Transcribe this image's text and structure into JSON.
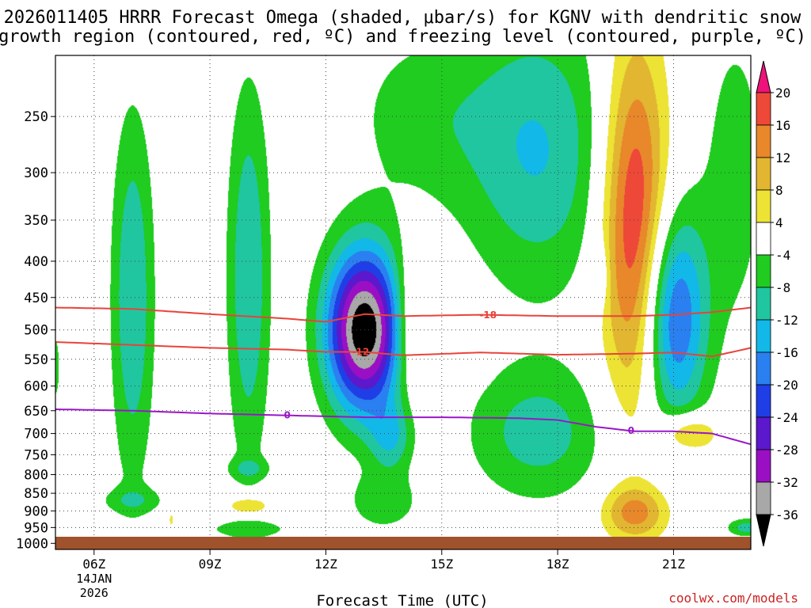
{
  "title_line1": "2026011405 HRRR Forecast Omega (shaded, μbar/s) for KGNV with dendritic snow",
  "title_line2": "growth region (contoured, red, ºC) and freezing level (contoured, purple, ºC)",
  "credit": "coolwx.com/models",
  "colors": {
    "dgz_contour": "#e8433a",
    "freezing_contour": "#9a16c8",
    "ground": "#a0522d",
    "credit": "#cc2222"
  },
  "chart_data": {
    "type": "heatmap",
    "xlabel": "Forecast Time (UTC)",
    "ylabel": "",
    "x_range_hours": [
      5,
      23
    ],
    "x_ticks": [
      {
        "hour": 6,
        "label": "06Z",
        "date1": "14JAN",
        "date2": "2026"
      },
      {
        "hour": 9,
        "label": "09Z"
      },
      {
        "hour": 12,
        "label": "12Z"
      },
      {
        "hour": 15,
        "label": "15Z"
      },
      {
        "hour": 18,
        "label": "18Z"
      },
      {
        "hour": 21,
        "label": "21Z"
      }
    ],
    "y_range_mb": [
      205,
      1020
    ],
    "y_ticks": [
      250,
      300,
      350,
      400,
      450,
      500,
      550,
      600,
      650,
      700,
      750,
      800,
      850,
      900,
      950,
      1000
    ],
    "grid": true,
    "colorbar": {
      "units": "μbar/s",
      "levels": [
        {
          "lo": -40,
          "hi": -36,
          "color": "#000000"
        },
        {
          "lo": -36,
          "hi": -32,
          "color": "#a8a8a8"
        },
        {
          "lo": -32,
          "hi": -28,
          "color": "#9b0fc4"
        },
        {
          "lo": -28,
          "hi": -24,
          "color": "#5c18cc"
        },
        {
          "lo": -24,
          "hi": -20,
          "color": "#1f3ee6"
        },
        {
          "lo": -20,
          "hi": -16,
          "color": "#2a80f0"
        },
        {
          "lo": -16,
          "hi": -12,
          "color": "#12b8e8"
        },
        {
          "lo": -12,
          "hi": -8,
          "color": "#20c6a0"
        },
        {
          "lo": -8,
          "hi": -4,
          "color": "#1fcc1f"
        },
        {
          "lo": -4,
          "hi": 4,
          "color": "#ffffff"
        },
        {
          "lo": 4,
          "hi": 8,
          "color": "#ece335"
        },
        {
          "lo": 8,
          "hi": 12,
          "color": "#e2b630"
        },
        {
          "lo": 12,
          "hi": 16,
          "color": "#e8882a"
        },
        {
          "lo": 16,
          "hi": 20,
          "color": "#ee4838"
        },
        {
          "lo": 20,
          "hi": 24,
          "color": "#ee127a"
        }
      ],
      "tick_labels": [
        "20",
        "16",
        "12",
        "8",
        "4",
        "-4",
        "-8",
        "-12",
        "-16",
        "-20",
        "-24",
        "-28",
        "-32",
        "-36"
      ]
    },
    "omega_features": [
      {
        "hour": 5.0,
        "p": 565,
        "dh": 0.14,
        "dp": 75,
        "peak": -6
      },
      {
        "hour": 7.0,
        "p": 450,
        "dh": 0.55,
        "dp": 240,
        "peak": -12
      },
      {
        "hour": 10.0,
        "p": 420,
        "dh": 0.55,
        "dp": 230,
        "peak": -12
      },
      {
        "hour": 7.0,
        "p": 870,
        "dh": 0.9,
        "dp": 38,
        "peak": -6
      },
      {
        "hour": 8.0,
        "p": 925,
        "dh": 0.12,
        "dp": 45,
        "peak": 5
      },
      {
        "hour": 10.0,
        "p": 785,
        "dh": 0.55,
        "dp": 28,
        "peak": -6
      },
      {
        "hour": 10.0,
        "p": 885,
        "dh": 0.55,
        "dp": 28,
        "peak": 10
      },
      {
        "hour": 10.0,
        "p": 955,
        "dh": 1.2,
        "dp": 30,
        "peak": -6
      },
      {
        "hour": 13.0,
        "p": 500,
        "dh": 1.0,
        "dp": 130,
        "peak": -40
      },
      {
        "hour": 14.2,
        "p": 490,
        "dh": 0.5,
        "dp": 110,
        "peak": 10
      },
      {
        "hour": 16.0,
        "p": 510,
        "dh": 0.3,
        "dp": 45,
        "peak": 5
      },
      {
        "hour": 13.7,
        "p": 710,
        "dh": 0.55,
        "dp": 80,
        "peak": -10
      },
      {
        "hour": 13.5,
        "p": 875,
        "dh": 0.9,
        "dp": 80,
        "peak": -7
      },
      {
        "hour": 14.5,
        "p": 250,
        "dh": 1.9,
        "dp": 70,
        "peak": -6
      },
      {
        "hour": 17.5,
        "p": 280,
        "dh": 1.9,
        "dp": 120,
        "peak": -12
      },
      {
        "hour": 17.5,
        "p": 700,
        "dh": 1.8,
        "dp": 150,
        "peak": -10
      },
      {
        "hour": 20.0,
        "p": 355,
        "dh": 0.85,
        "dp": 190,
        "peak": 22
      },
      {
        "hour": 20.0,
        "p": 905,
        "dh": 0.85,
        "dp": 80,
        "peak": 13
      },
      {
        "hour": 21.0,
        "p": 480,
        "dh": 0.85,
        "dp": 160,
        "peak": -22
      },
      {
        "hour": 21.4,
        "p": 700,
        "dh": 0.75,
        "dp": 45,
        "peak": 12
      },
      {
        "hour": 22.6,
        "p": 300,
        "dh": 0.9,
        "dp": 150,
        "peak": -6
      },
      {
        "hour": 22.9,
        "p": 950,
        "dh": 0.5,
        "dp": 28,
        "peak": -10
      },
      {
        "hour": 19.1,
        "p": 420,
        "dh": 0.2,
        "dp": 40,
        "peak": -6
      }
    ],
    "contours": [
      {
        "name": "-18C",
        "label": "-18",
        "color": "#e8433a",
        "x": [
          5,
          7,
          9,
          11,
          12,
          13,
          14,
          16,
          18,
          20,
          21,
          22,
          23
        ],
        "y": [
          465,
          467,
          475,
          482,
          487,
          475,
          478,
          476,
          478,
          478,
          476,
          472,
          465
        ],
        "label_hour": 16.2
      },
      {
        "name": "-12C",
        "label": "-12",
        "color": "#e8433a",
        "x": [
          5,
          7,
          9,
          11,
          12,
          13,
          14,
          16,
          18,
          20,
          21,
          22,
          23
        ],
        "y": [
          520,
          525,
          530,
          533,
          537,
          537,
          543,
          538,
          542,
          540,
          538,
          545,
          530
        ],
        "label_hour": 12.9
      },
      {
        "name": "0C freezing level",
        "label": "0",
        "color": "#9a16c8",
        "x": [
          5,
          7,
          9,
          11,
          13,
          15,
          17,
          18,
          19,
          20,
          21,
          22,
          23
        ],
        "y": [
          647,
          650,
          656,
          660,
          664,
          664,
          666,
          670,
          685,
          695,
          695,
          700,
          725
        ],
        "label_hour": 11.0,
        "label_hour2": 19.9
      }
    ]
  }
}
